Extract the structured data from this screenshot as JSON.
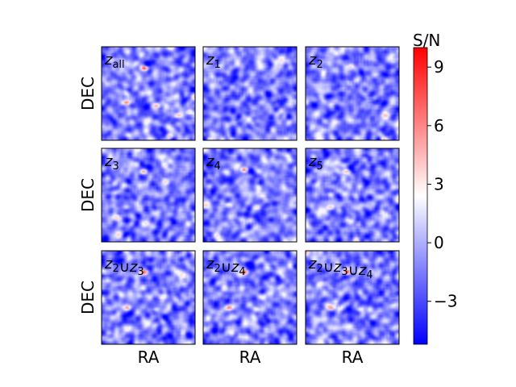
{
  "chart_data": {
    "type": "heatmap",
    "colormap": "bwr",
    "grid": false,
    "colorbar": {
      "title": "S/N",
      "range": [
        -5.2,
        10.0
      ],
      "ticks": [
        -3,
        0,
        3,
        6,
        9
      ],
      "tick_labels": [
        "−3",
        "0",
        "3",
        "6",
        "9"
      ]
    },
    "xlabel": "RA",
    "ylabel": "DEC",
    "rows": 3,
    "cols": 3,
    "background_mean": -1.4,
    "background_std": 1.5,
    "panels": [
      {
        "label_base": "z",
        "label_sub": "all",
        "label_parts": [],
        "sources": [
          {
            "x": 0.45,
            "y": 0.22,
            "sn": 9.8
          },
          {
            "x": 0.26,
            "y": 0.59,
            "sn": 8.6
          },
          {
            "x": 0.58,
            "y": 0.62,
            "sn": 5.2
          },
          {
            "x": 0.8,
            "y": 0.73,
            "sn": 4.0
          },
          {
            "x": 0.93,
            "y": 0.69,
            "sn": 3.5
          },
          {
            "x": 0.72,
            "y": 0.95,
            "sn": 4.5
          }
        ]
      },
      {
        "label_base": "z",
        "label_sub": "1",
        "label_parts": [],
        "sources": []
      },
      {
        "label_base": "z",
        "label_sub": "2",
        "label_parts": [],
        "sources": [
          {
            "x": 0.46,
            "y": 0.2,
            "sn": 4.5
          },
          {
            "x": 0.27,
            "y": 0.61,
            "sn": 3.5
          }
        ]
      },
      {
        "label_base": "z",
        "label_sub": "3",
        "label_parts": [],
        "sources": [
          {
            "x": 0.44,
            "y": 0.24,
            "sn": 6.0
          },
          {
            "x": 0.27,
            "y": 0.62,
            "sn": 3.2
          }
        ]
      },
      {
        "label_base": "z",
        "label_sub": "4",
        "label_parts": [],
        "sources": [
          {
            "x": 0.43,
            "y": 0.22,
            "sn": 8.4
          },
          {
            "x": 0.27,
            "y": 0.6,
            "sn": 5.0
          },
          {
            "x": 0.57,
            "y": 0.62,
            "sn": 3.5
          }
        ]
      },
      {
        "label_base": "z",
        "label_sub": "5",
        "label_parts": [],
        "sources": [
          {
            "x": 0.43,
            "y": 0.24,
            "sn": 5.2
          },
          {
            "x": 0.26,
            "y": 0.62,
            "sn": 3.6
          }
        ]
      },
      {
        "label_base": "",
        "label_sub": "",
        "label_parts": [
          [
            "z",
            "2"
          ],
          [
            "z",
            "3"
          ]
        ],
        "sources": [
          {
            "x": 0.45,
            "y": 0.22,
            "sn": 8.2
          },
          {
            "x": 0.27,
            "y": 0.6,
            "sn": 5.8
          },
          {
            "x": 0.57,
            "y": 0.62,
            "sn": 3.6
          }
        ]
      },
      {
        "label_base": "",
        "label_sub": "",
        "label_parts": [
          [
            "z",
            "2"
          ],
          [
            "z",
            "4"
          ]
        ],
        "sources": [
          {
            "x": 0.44,
            "y": 0.22,
            "sn": 9.5
          },
          {
            "x": 0.27,
            "y": 0.6,
            "sn": 6.2
          },
          {
            "x": 0.57,
            "y": 0.62,
            "sn": 4.2
          }
        ]
      },
      {
        "label_base": "",
        "label_sub": "",
        "label_parts": [
          [
            "z",
            "2"
          ],
          [
            "z",
            "3"
          ],
          [
            "z",
            "4"
          ]
        ],
        "sources": [
          {
            "x": 0.44,
            "y": 0.22,
            "sn": 9.6
          },
          {
            "x": 0.27,
            "y": 0.6,
            "sn": 6.4
          },
          {
            "x": 0.57,
            "y": 0.62,
            "sn": 4.4
          }
        ]
      }
    ],
    "union_symbol": "∪"
  }
}
